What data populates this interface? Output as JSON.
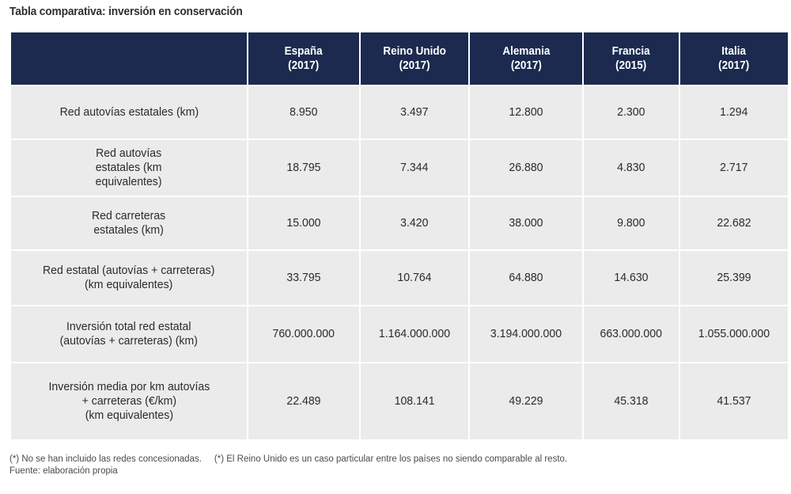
{
  "title": "Tabla comparativa: inversión en conservación",
  "table": {
    "columns": [
      {
        "name": "España",
        "year": "(2017)"
      },
      {
        "name": "Reino Unido",
        "year": "(2017)"
      },
      {
        "name": "Alemania",
        "year": "(2017)"
      },
      {
        "name": "Francia",
        "year": "(2015)"
      },
      {
        "name": "Italia",
        "year": "(2017)"
      }
    ],
    "rows": [
      {
        "label": [
          "Red autovías estatales (km)"
        ],
        "values": [
          "8.950",
          "3.497",
          "12.800",
          "2.300",
          "1.294"
        ]
      },
      {
        "label": [
          "Red autovías",
          "estatales (km",
          "equivalentes)"
        ],
        "values": [
          "18.795",
          "7.344",
          "26.880",
          "4.830",
          "2.717"
        ]
      },
      {
        "label": [
          "Red carreteras",
          "estatales (km)"
        ],
        "values": [
          "15.000",
          "3.420",
          "38.000",
          "9.800",
          "22.682"
        ]
      },
      {
        "label": [
          "Red estatal (autovías + carreteras)",
          "(km equivalentes)"
        ],
        "values": [
          "33.795",
          "10.764",
          "64.880",
          "14.630",
          "25.399"
        ]
      },
      {
        "label": [
          "Inversión total red estatal",
          "(autovías + carreteras) (km)"
        ],
        "values": [
          "760.000.000",
          "1.164.000.000",
          "3.194.000.000",
          "663.000.000",
          "1.055.000.000"
        ]
      },
      {
        "label": [
          "Inversión media por km autovías",
          "+ carreteras (€/km)",
          "(km equivalentes)"
        ],
        "values": [
          "22.489",
          "108.141",
          "49.229",
          "45.318",
          "41.537"
        ]
      }
    ]
  },
  "notes": {
    "note1": "(*) No se han incluido las redes concesionadas.",
    "note2": "(*) El Reino Unido es un caso particular entre los países no siendo comparable al resto.",
    "source": "Fuente: elaboración propia"
  },
  "colors": {
    "header_bg": "#1b2a4e",
    "cell_bg": "#ebebeb"
  }
}
